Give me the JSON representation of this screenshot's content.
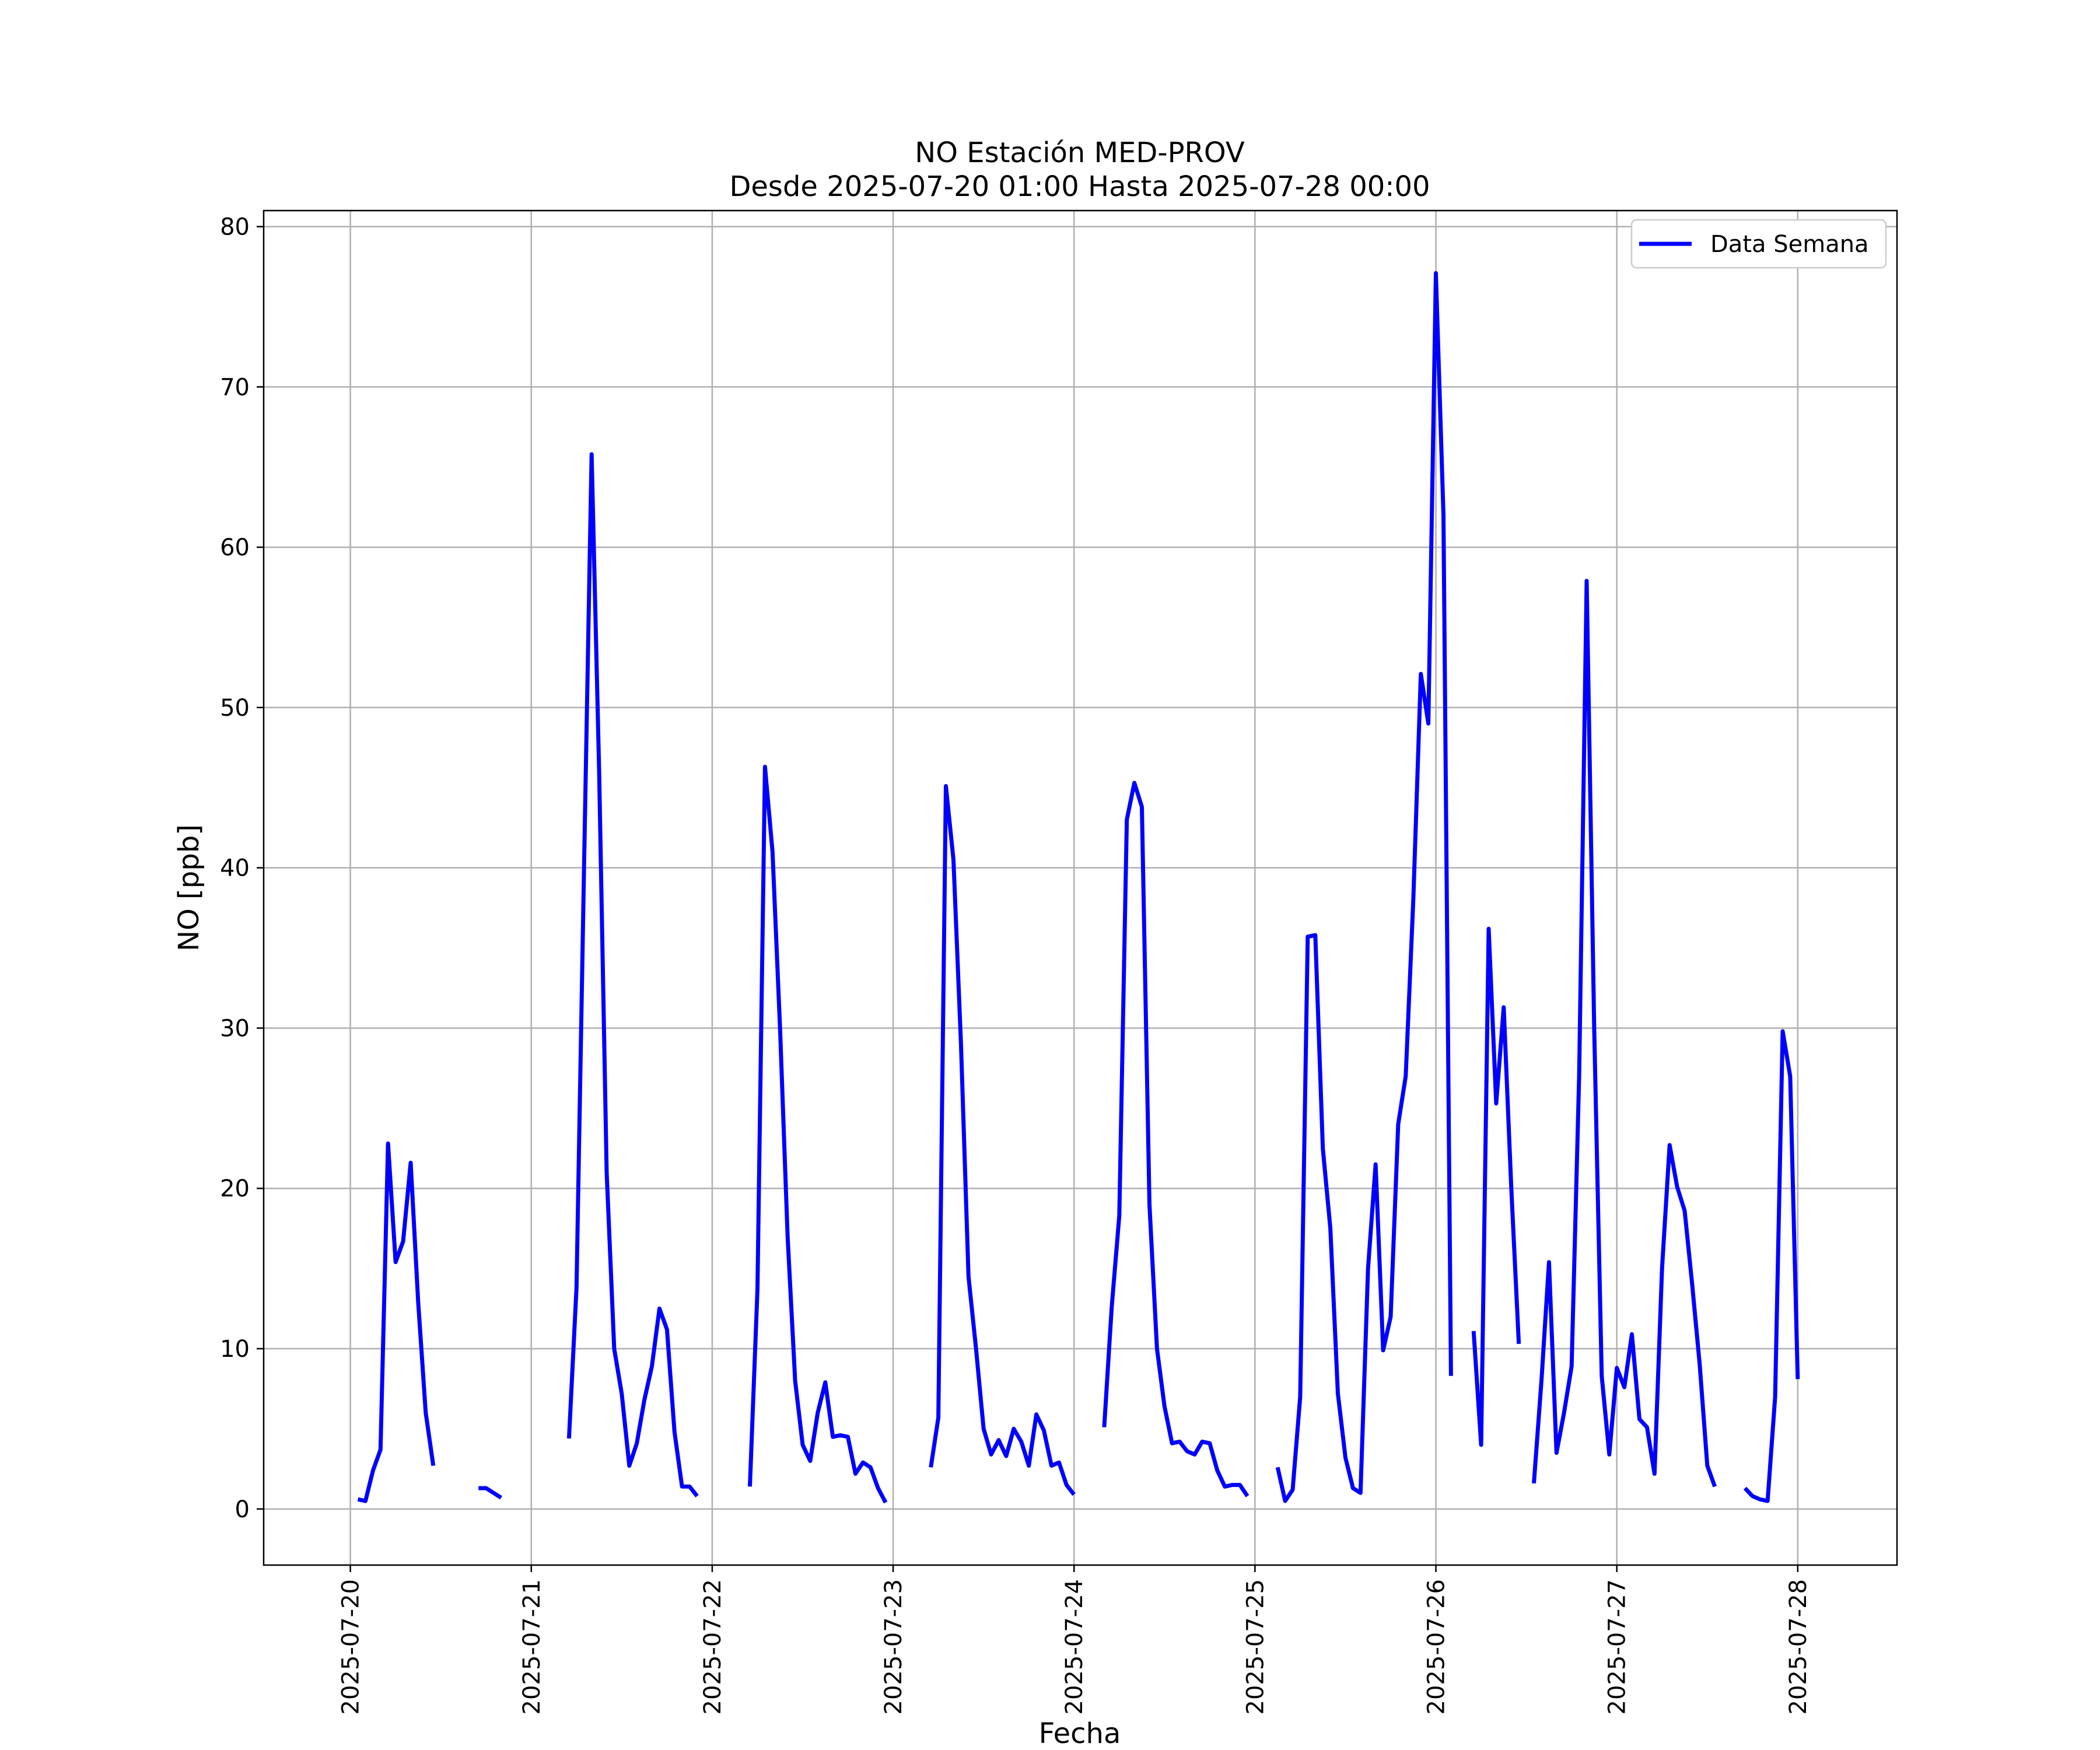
{
  "chart_data": {
    "type": "line",
    "title": "NO Estación MED-PROV",
    "subtitle": "Desde 2025-07-20 01:00 Hasta 2025-07-28 00:00",
    "xlabel": "Fecha",
    "ylabel": "NO [ppb]",
    "xlim": [
      "2025-07-19 12:30",
      "2025-07-28 13:10"
    ],
    "ylim": [
      -3.5,
      81
    ],
    "x_ticks": [
      "2025-07-20",
      "2025-07-21",
      "2025-07-22",
      "2025-07-23",
      "2025-07-24",
      "2025-07-25",
      "2025-07-26",
      "2025-07-27",
      "2025-07-28"
    ],
    "y_ticks": [
      0,
      10,
      20,
      30,
      40,
      50,
      60,
      70,
      80
    ],
    "grid": true,
    "legend": "top-right",
    "series": [
      {
        "name": "Data Semana",
        "color": "#0000ff",
        "points": [
          [
            "2025-07-20 01:00",
            0.6
          ],
          [
            "2025-07-20 02:00",
            0.5
          ],
          [
            "2025-07-20 03:00",
            2.4
          ],
          [
            "2025-07-20 04:00",
            3.7
          ],
          [
            "2025-07-20 05:00",
            22.8
          ],
          [
            "2025-07-20 06:00",
            15.4
          ],
          [
            "2025-07-20 07:00",
            16.7
          ],
          [
            "2025-07-20 08:00",
            21.6
          ],
          [
            "2025-07-20 09:00",
            12.9
          ],
          [
            "2025-07-20 10:00",
            6.0
          ],
          [
            "2025-07-20 11:00",
            2.7
          ],
          null,
          [
            "2025-07-20 17:00",
            1.3
          ],
          [
            "2025-07-20 18:00",
            1.3
          ],
          [
            "2025-07-20 19:00",
            1.0
          ],
          [
            "2025-07-20 20:00",
            0.7
          ],
          null,
          [
            "2025-07-21 05:00",
            4.4
          ],
          [
            "2025-07-21 06:00",
            13.8
          ],
          [
            "2025-07-21 07:00",
            40.0
          ],
          [
            "2025-07-21 08:00",
            65.8
          ],
          [
            "2025-07-21 09:00",
            46.0
          ],
          [
            "2025-07-21 10:00",
            21.0
          ],
          [
            "2025-07-21 11:00",
            10.0
          ],
          [
            "2025-07-21 12:00",
            7.2
          ],
          [
            "2025-07-21 13:00",
            2.7
          ],
          [
            "2025-07-21 14:00",
            4.1
          ],
          [
            "2025-07-21 15:00",
            6.8
          ],
          [
            "2025-07-21 16:00",
            8.9
          ],
          [
            "2025-07-21 17:00",
            12.5
          ],
          [
            "2025-07-21 18:00",
            11.2
          ],
          [
            "2025-07-21 19:00",
            4.8
          ],
          [
            "2025-07-21 20:00",
            1.4
          ],
          [
            "2025-07-21 21:00",
            1.4
          ],
          [
            "2025-07-21 22:00",
            0.8
          ],
          null,
          [
            "2025-07-22 05:00",
            1.4
          ],
          [
            "2025-07-22 06:00",
            13.7
          ],
          [
            "2025-07-22 07:00",
            46.3
          ],
          [
            "2025-07-22 08:00",
            41.0
          ],
          [
            "2025-07-22 09:00",
            30.0
          ],
          [
            "2025-07-22 10:00",
            17.0
          ],
          [
            "2025-07-22 11:00",
            8.0
          ],
          [
            "2025-07-22 12:00",
            4.0
          ],
          [
            "2025-07-22 13:00",
            3.0
          ],
          [
            "2025-07-22 14:00",
            6.0
          ],
          [
            "2025-07-22 15:00",
            7.9
          ],
          [
            "2025-07-22 16:00",
            4.5
          ],
          [
            "2025-07-22 17:00",
            4.6
          ],
          [
            "2025-07-22 18:00",
            4.5
          ],
          [
            "2025-07-22 19:00",
            2.2
          ],
          [
            "2025-07-22 20:00",
            2.9
          ],
          [
            "2025-07-22 21:00",
            2.6
          ],
          [
            "2025-07-22 22:00",
            1.3
          ],
          [
            "2025-07-22 23:00",
            0.4
          ],
          null,
          [
            "2025-07-23 05:00",
            2.6
          ],
          [
            "2025-07-23 06:00",
            5.7
          ],
          [
            "2025-07-23 07:00",
            45.1
          ],
          [
            "2025-07-23 08:00",
            40.5
          ],
          [
            "2025-07-23 09:00",
            29.0
          ],
          [
            "2025-07-23 10:00",
            14.5
          ],
          [
            "2025-07-23 11:00",
            10.0
          ],
          [
            "2025-07-23 12:00",
            5.0
          ],
          [
            "2025-07-23 13:00",
            3.4
          ],
          [
            "2025-07-23 14:00",
            4.3
          ],
          [
            "2025-07-23 15:00",
            3.3
          ],
          [
            "2025-07-23 16:00",
            5.0
          ],
          [
            "2025-07-23 17:00",
            4.2
          ],
          [
            "2025-07-23 18:00",
            2.7
          ],
          [
            "2025-07-23 19:00",
            5.9
          ],
          [
            "2025-07-23 20:00",
            4.9
          ],
          [
            "2025-07-23 21:00",
            2.7
          ],
          [
            "2025-07-23 22:00",
            2.9
          ],
          [
            "2025-07-23 23:00",
            1.5
          ],
          [
            "2025-07-24 00:00",
            0.9
          ],
          null,
          [
            "2025-07-24 04:00",
            5.1
          ],
          [
            "2025-07-24 05:00",
            12.6
          ],
          [
            "2025-07-24 06:00",
            18.3
          ],
          [
            "2025-07-24 07:00",
            43.0
          ],
          [
            "2025-07-24 08:00",
            45.3
          ],
          [
            "2025-07-24 09:00",
            43.8
          ],
          [
            "2025-07-24 10:00",
            19.0
          ],
          [
            "2025-07-24 11:00",
            10.0
          ],
          [
            "2025-07-24 12:00",
            6.4
          ],
          [
            "2025-07-24 13:00",
            4.1
          ],
          [
            "2025-07-24 14:00",
            4.2
          ],
          [
            "2025-07-24 15:00",
            3.6
          ],
          [
            "2025-07-24 16:00",
            3.4
          ],
          [
            "2025-07-24 17:00",
            4.2
          ],
          [
            "2025-07-24 18:00",
            4.1
          ],
          [
            "2025-07-24 19:00",
            2.4
          ],
          [
            "2025-07-24 20:00",
            1.4
          ],
          [
            "2025-07-24 21:00",
            1.5
          ],
          [
            "2025-07-24 22:00",
            1.5
          ],
          [
            "2025-07-24 23:00",
            0.8
          ],
          null,
          [
            "2025-07-25 03:00",
            2.6
          ],
          [
            "2025-07-25 04:00",
            0.5
          ],
          [
            "2025-07-25 05:00",
            1.2
          ],
          [
            "2025-07-25 06:00",
            7.0
          ],
          [
            "2025-07-25 07:00",
            35.7
          ],
          [
            "2025-07-25 08:00",
            35.8
          ],
          [
            "2025-07-25 09:00",
            22.5
          ],
          [
            "2025-07-25 10:00",
            17.5
          ],
          [
            "2025-07-25 11:00",
            7.2
          ],
          [
            "2025-07-25 12:00",
            3.2
          ],
          [
            "2025-07-25 13:00",
            1.3
          ],
          [
            "2025-07-25 14:00",
            1.0
          ],
          [
            "2025-07-25 15:00",
            15.0
          ],
          [
            "2025-07-25 16:00",
            21.5
          ],
          [
            "2025-07-25 17:00",
            9.9
          ],
          [
            "2025-07-25 18:00",
            12.0
          ],
          [
            "2025-07-25 19:00",
            24.0
          ],
          [
            "2025-07-25 20:00",
            27.0
          ],
          [
            "2025-07-25 21:00",
            38.0
          ],
          [
            "2025-07-25 22:00",
            52.1
          ],
          [
            "2025-07-25 23:00",
            49.0
          ],
          [
            "2025-07-26 00:00",
            77.1
          ],
          [
            "2025-07-26 01:00",
            62.0
          ],
          [
            "2025-07-26 02:00",
            8.3
          ],
          null,
          [
            "2025-07-26 05:00",
            11.1
          ],
          [
            "2025-07-26 06:00",
            4.0
          ],
          [
            "2025-07-26 07:00",
            36.2
          ],
          [
            "2025-07-26 08:00",
            25.3
          ],
          [
            "2025-07-26 09:00",
            31.3
          ],
          [
            "2025-07-26 10:00",
            20.0
          ],
          [
            "2025-07-26 11:00",
            10.3
          ],
          null,
          [
            "2025-07-26 13:00",
            1.6
          ],
          [
            "2025-07-26 14:00",
            8.0
          ],
          [
            "2025-07-26 15:00",
            15.4
          ],
          [
            "2025-07-26 16:00",
            3.5
          ],
          [
            "2025-07-26 17:00",
            6.0
          ],
          [
            "2025-07-26 18:00",
            8.9
          ],
          [
            "2025-07-26 19:00",
            27.0
          ],
          [
            "2025-07-26 20:00",
            57.9
          ],
          [
            "2025-07-26 21:00",
            30.0
          ],
          [
            "2025-07-26 22:00",
            8.3
          ],
          [
            "2025-07-26 23:00",
            3.4
          ],
          [
            "2025-07-27 00:00",
            8.8
          ],
          [
            "2025-07-27 01:00",
            7.6
          ],
          [
            "2025-07-27 02:00",
            10.9
          ],
          [
            "2025-07-27 03:00",
            5.6
          ],
          [
            "2025-07-27 04:00",
            5.1
          ],
          [
            "2025-07-27 05:00",
            2.2
          ],
          [
            "2025-07-27 06:00",
            15.0
          ],
          [
            "2025-07-27 07:00",
            22.7
          ],
          [
            "2025-07-27 08:00",
            20.1
          ],
          [
            "2025-07-27 09:00",
            18.6
          ],
          [
            "2025-07-27 10:00",
            14.0
          ],
          [
            "2025-07-27 11:00",
            9.0
          ],
          [
            "2025-07-27 12:00",
            2.7
          ],
          [
            "2025-07-27 13:00",
            1.4
          ],
          null,
          [
            "2025-07-27 17:00",
            1.3
          ],
          [
            "2025-07-27 18:00",
            0.8
          ],
          [
            "2025-07-27 19:00",
            0.6
          ],
          [
            "2025-07-27 20:00",
            0.5
          ],
          [
            "2025-07-27 21:00",
            7.0
          ],
          [
            "2025-07-27 22:00",
            29.8
          ],
          [
            "2025-07-27 23:00",
            27.0
          ],
          [
            "2025-07-28 00:00",
            8.1
          ]
        ]
      }
    ]
  }
}
